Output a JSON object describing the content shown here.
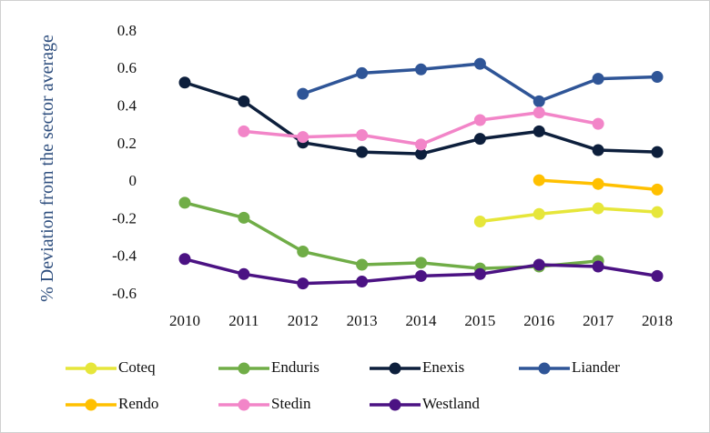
{
  "chart_data": {
    "type": "line",
    "ylabel": "% Deviation from the sector average",
    "categories": [
      "2010",
      "2011",
      "2012",
      "2013",
      "2014",
      "2015",
      "2016",
      "2017",
      "2018"
    ],
    "series": [
      {
        "name": "Coteq",
        "color": "#e6e63a",
        "values": [
          null,
          null,
          null,
          null,
          null,
          -0.21,
          -0.17,
          -0.14,
          -0.16
        ]
      },
      {
        "name": "Enduris",
        "color": "#70ad47",
        "values": [
          -0.11,
          -0.19,
          -0.37,
          -0.44,
          -0.43,
          -0.46,
          -0.45,
          -0.42,
          null
        ]
      },
      {
        "name": "Enexis",
        "color": "#0d1f3c",
        "values": [
          0.53,
          0.43,
          0.21,
          0.16,
          0.15,
          0.23,
          0.27,
          0.17,
          0.16
        ]
      },
      {
        "name": "Liander",
        "color": "#2f5597",
        "values": [
          null,
          null,
          0.47,
          0.58,
          0.6,
          0.63,
          0.43,
          0.55,
          0.56
        ]
      },
      {
        "name": "Rendo",
        "color": "#ffc000",
        "values": [
          null,
          null,
          null,
          null,
          null,
          null,
          0.01,
          -0.01,
          -0.04
        ]
      },
      {
        "name": "Stedin",
        "color": "#f285c8",
        "values": [
          null,
          0.27,
          0.24,
          0.25,
          0.2,
          0.33,
          0.37,
          0.31,
          null
        ]
      },
      {
        "name": "Westland",
        "color": "#4b1283",
        "values": [
          -0.41,
          -0.49,
          -0.54,
          -0.53,
          -0.5,
          -0.49,
          -0.44,
          -0.45,
          -0.5
        ]
      }
    ],
    "ylim": [
      -0.6,
      0.8
    ],
    "yticks": [
      0.8,
      0.6,
      0.4,
      0.2,
      0,
      -0.2,
      -0.4,
      -0.6
    ],
    "grid": false
  }
}
